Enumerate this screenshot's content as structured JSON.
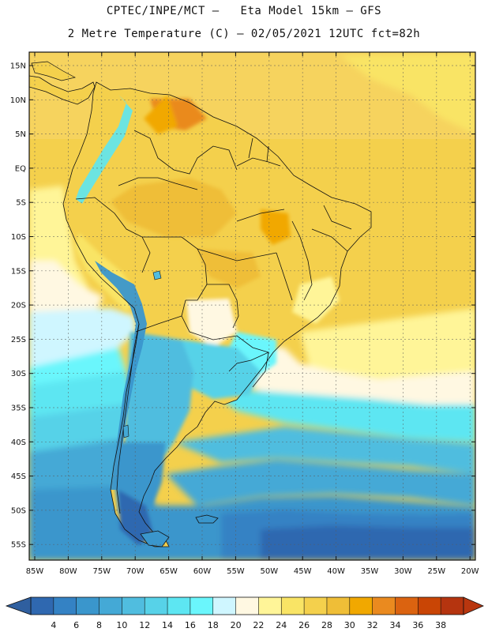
{
  "header": {
    "line1": "CPTEC/INPE/MCT –   Eta Model 15km – GFS",
    "line2": "2 Metre Temperature (C) – 02/05/2021 12UTC fct=82h"
  },
  "lat_labels": [
    "15N",
    "10N",
    "5N",
    "EQ",
    "5S",
    "10S",
    "15S",
    "20S",
    "25S",
    "30S",
    "35S",
    "40S",
    "45S",
    "50S",
    "55S"
  ],
  "lon_labels": [
    "85W",
    "80W",
    "75W",
    "70W",
    "65W",
    "60W",
    "55W",
    "50W",
    "45W",
    "40W",
    "35W",
    "30W",
    "25W",
    "20W"
  ],
  "colorbar": {
    "labels": [
      "4",
      "6",
      "8",
      "10",
      "12",
      "14",
      "16",
      "18",
      "20",
      "22",
      "24",
      "26",
      "28",
      "30",
      "32",
      "34",
      "36",
      "38"
    ],
    "colors": [
      "#2F68B0",
      "#3482C4",
      "#3A96CC",
      "#44A9D6",
      "#50BDDF",
      "#57D2E8",
      "#5DE6F2",
      "#6AF6FC",
      "#CFF6FF",
      "#FFF8E2",
      "#FFF598",
      "#F9E465",
      "#F4D04C",
      "#EFBE37",
      "#F1A800",
      "#EA8A1F",
      "#DB6310",
      "#C94505",
      "#B5340F"
    ],
    "low_color": "#2F5F9F",
    "high_color": "#B8360F"
  }
}
